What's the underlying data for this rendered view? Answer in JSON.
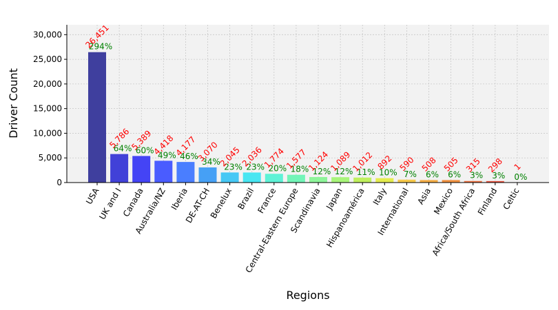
{
  "chart_data": {
    "type": "bar",
    "xlabel": "Regions",
    "ylabel": "Driver Count",
    "ylim": [
      0,
      32000
    ],
    "yticks": [
      0,
      5000,
      10000,
      15000,
      20000,
      25000,
      30000
    ],
    "ytick_labels": [
      "0",
      "5,000",
      "10,000",
      "15,000",
      "20,000",
      "25,000",
      "30,000"
    ],
    "grid": true,
    "categories": [
      "USA",
      "UK and I",
      "Canada",
      "Australia/NZ",
      "Iberia",
      "DE-AT-CH",
      "Benelux",
      "Brazil",
      "France",
      "Central-Eastern Europe",
      "Scandinavia",
      "Japan",
      "Hispanoamérica",
      "Italy",
      "International",
      "Asia",
      "Mexico",
      "Africa/South Africa",
      "Finland",
      "Celtic"
    ],
    "values": [
      26451,
      5786,
      5389,
      4418,
      4177,
      3070,
      2045,
      2036,
      1774,
      1577,
      1124,
      1089,
      1012,
      892,
      590,
      508,
      505,
      315,
      298,
      1
    ],
    "value_labels": [
      "26,451",
      "5,786",
      "5,389",
      "4,418",
      "4,177",
      "3,070",
      "2,045",
      "2,036",
      "1,774",
      "1,577",
      "1,124",
      "1,089",
      "1,012",
      "892",
      "590",
      "508",
      "505",
      "315",
      "298",
      "1"
    ],
    "percent_labels": [
      "294%",
      "64%",
      "60%",
      "49%",
      "46%",
      "34%",
      "23%",
      "23%",
      "20%",
      "18%",
      "12%",
      "12%",
      "11%",
      "10%",
      "7%",
      "6%",
      "6%",
      "3%",
      "3%",
      "0%"
    ],
    "colors": [
      "#3f3f9e",
      "#4141d8",
      "#4444f5",
      "#4a5cff",
      "#4a7eff",
      "#46a0f5",
      "#46c8f5",
      "#48e6f2",
      "#5ef2d6",
      "#72f5b8",
      "#8ef59a",
      "#a8f57a",
      "#c0f05e",
      "#e4ec4e",
      "#f6c84a",
      "#f4ac44",
      "#f0903e",
      "#ec7040",
      "#e6523e",
      "#e03a3a"
    ]
  }
}
